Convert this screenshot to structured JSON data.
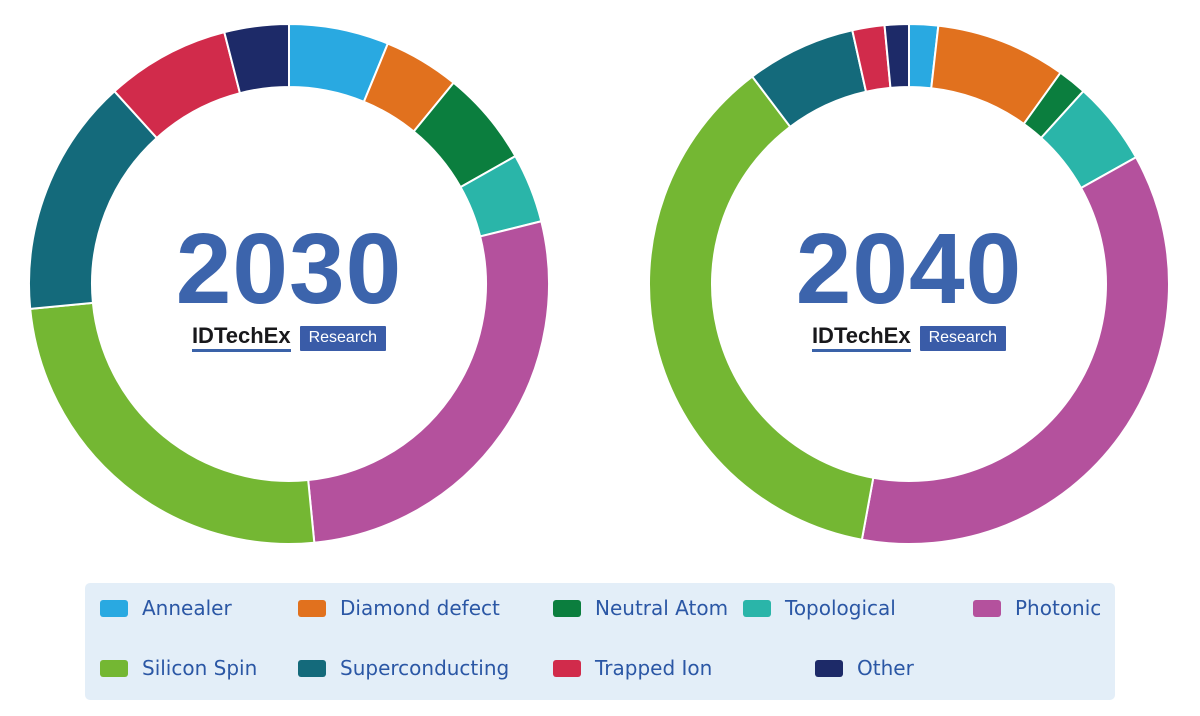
{
  "branding": {
    "name": "IDTechEx",
    "sub": "Research"
  },
  "colors": {
    "year_text": "#3C64AC",
    "legend_text": "#2B57A5",
    "legend_bg": "#E3EEF8",
    "brand_box": "#3A5CA8",
    "brand_underline": "#3A62A8",
    "segment_gap": "#FFFFFF"
  },
  "chart_data": [
    {
      "type": "pie",
      "variant": "donut",
      "title": "2030",
      "categories": [
        "Annealer",
        "Diamond defect",
        "Neutral Atom",
        "Topological",
        "Photonic",
        "Silicon Spin",
        "Superconducting",
        "Trapped Ion",
        "Other"
      ],
      "values": [
        6.2,
        4.7,
        5.9,
        4.3,
        27.3,
        25.0,
        14.8,
        7.7,
        4.0
      ],
      "unit": "%",
      "colors": [
        "#29A9E1",
        "#E1711E",
        "#0B7E3E",
        "#2AB5A9",
        "#B4519D",
        "#74B733",
        "#146A7B",
        "#D12B4B",
        "#1D2A68"
      ],
      "start_angle_deg": 0,
      "direction": "clockwise",
      "legend_position": "bottom"
    },
    {
      "type": "pie",
      "variant": "donut",
      "title": "2040",
      "categories": [
        "Annealer",
        "Diamond defect",
        "Neutral Atom",
        "Topological",
        "Photonic",
        "Silicon Spin",
        "Superconducting",
        "Trapped Ion",
        "Other"
      ],
      "values": [
        1.8,
        8.1,
        1.8,
        5.2,
        36.0,
        36.8,
        6.8,
        2.0,
        1.5
      ],
      "unit": "%",
      "colors": [
        "#29A9E1",
        "#E1711E",
        "#0B7E3E",
        "#2AB5A9",
        "#B4519D",
        "#74B733",
        "#146A7B",
        "#D12B4B",
        "#1D2A68"
      ],
      "start_angle_deg": 0,
      "direction": "clockwise",
      "legend_position": "bottom"
    }
  ]
}
